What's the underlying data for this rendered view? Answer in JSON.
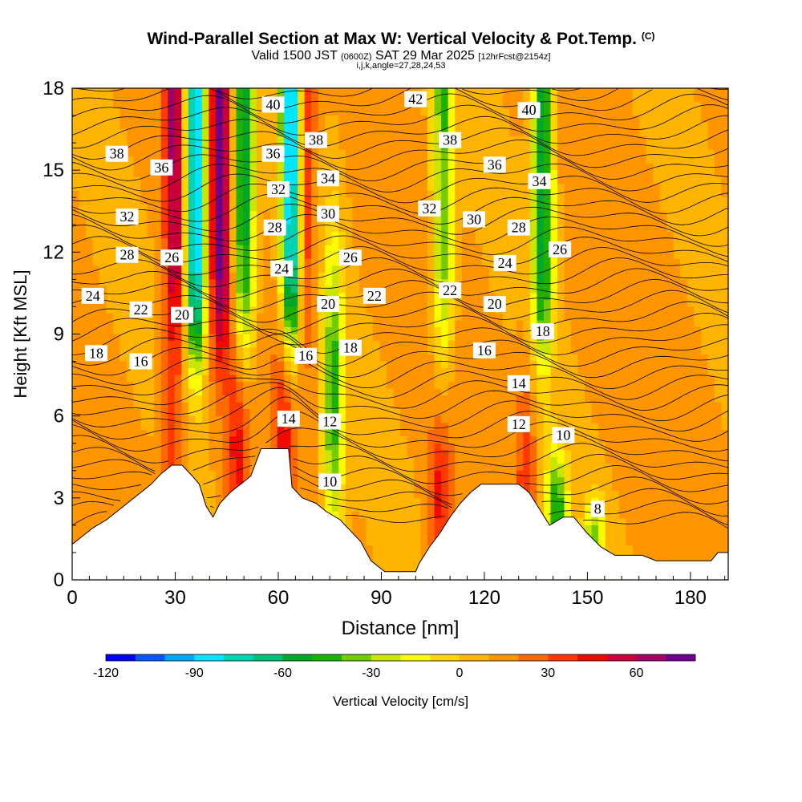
{
  "title": {
    "main": "Wind-Parallel Section at Max W: Vertical Velocity & Pot.Temp.",
    "copyright": "(C)",
    "valid_prefix": "Valid 1500 JST",
    "valid_utc": "(0600Z)",
    "valid_date": "SAT 29 Mar 2025",
    "forecast": "[12hrFcst@2154z]",
    "indices": "i,j,k,angle=27,28,24,53"
  },
  "colors": {
    "colorbar": [
      "#0000ff",
      "#0a55ff",
      "#00a5ff",
      "#00e6ff",
      "#00d2b4",
      "#00c075",
      "#00a82a",
      "#1fb000",
      "#73cc00",
      "#c8e600",
      "#fcfc00",
      "#ffd500",
      "#ffb500",
      "#ff9600",
      "#ff6a00",
      "#ff3a00",
      "#f00a00",
      "#c8003a",
      "#a00064",
      "#6e008c"
    ],
    "terrain": "#ffffff",
    "contour": "#000000"
  },
  "chart_data": {
    "type": "heatmap",
    "xlabel": "Distance [nm]",
    "ylabel": "Height [Kft MSL]",
    "xlim": [
      0,
      191
    ],
    "ylim": [
      0,
      18
    ],
    "xticks": [
      0,
      30,
      60,
      90,
      120,
      150,
      180
    ],
    "yticks": [
      0,
      3,
      6,
      9,
      12,
      15,
      18
    ],
    "colorbar": {
      "label": "Vertical Velocity [cm/s]",
      "range": [
        -120,
        80
      ],
      "step": 10,
      "ticks": [
        -120,
        -90,
        -60,
        -30,
        0,
        30,
        60
      ]
    },
    "terrain_profile": [
      [
        0,
        1.3
      ],
      [
        3,
        1.6
      ],
      [
        6,
        1.9
      ],
      [
        10,
        2.2
      ],
      [
        13,
        2.5
      ],
      [
        16,
        2.8
      ],
      [
        19,
        3.1
      ],
      [
        23,
        3.5
      ],
      [
        26,
        3.9
      ],
      [
        29,
        4.2
      ],
      [
        32,
        4.2
      ],
      [
        35,
        3.8
      ],
      [
        37,
        3.5
      ],
      [
        39,
        2.7
      ],
      [
        41,
        2.3
      ],
      [
        43,
        2.8
      ],
      [
        46,
        3.2
      ],
      [
        49,
        3.5
      ],
      [
        52,
        3.8
      ],
      [
        55,
        4.8
      ],
      [
        59,
        4.8
      ],
      [
        63,
        4.8
      ],
      [
        64,
        3.4
      ],
      [
        67,
        3.0
      ],
      [
        71,
        2.8
      ],
      [
        74,
        2.5
      ],
      [
        78,
        2.2
      ],
      [
        81,
        1.8
      ],
      [
        84,
        1.4
      ],
      [
        87,
        0.7
      ],
      [
        91,
        0.3
      ],
      [
        95,
        0.3
      ],
      [
        98,
        0.3
      ],
      [
        100,
        0.3
      ],
      [
        101,
        0.6
      ],
      [
        104,
        1.2
      ],
      [
        107,
        1.7
      ],
      [
        110,
        2.3
      ],
      [
        113,
        2.8
      ],
      [
        116,
        3.2
      ],
      [
        119,
        3.5
      ],
      [
        123,
        3.5
      ],
      [
        127,
        3.5
      ],
      [
        130,
        3.5
      ],
      [
        133,
        3.2
      ],
      [
        136,
        2.6
      ],
      [
        139,
        2.0
      ],
      [
        143,
        2.3
      ],
      [
        146,
        2.3
      ],
      [
        150,
        1.7
      ],
      [
        154,
        1.2
      ],
      [
        158,
        0.9
      ],
      [
        162,
        0.9
      ],
      [
        166,
        0.9
      ],
      [
        170,
        0.7
      ],
      [
        174,
        0.7
      ],
      [
        178,
        0.7
      ],
      [
        182,
        0.7
      ],
      [
        186,
        0.7
      ],
      [
        188,
        1.0
      ],
      [
        191,
        1.0
      ]
    ],
    "updrafts": [
      {
        "x": 30,
        "top": 18,
        "peak": 65
      },
      {
        "x": 43,
        "top": 18,
        "peak": 75
      },
      {
        "x": 67,
        "top": 18,
        "peak": 60
      },
      {
        "x": 29,
        "top": 7.5,
        "peak": 40
      },
      {
        "x": 48,
        "top": 8.5,
        "peak": 45
      },
      {
        "x": 62,
        "top": 10,
        "peak": 45
      },
      {
        "x": 107,
        "top": 5.5,
        "peak": 45
      },
      {
        "x": 132,
        "top": 7.5,
        "peak": 35
      }
    ],
    "downdrafts": [
      {
        "x": 36,
        "top": 18,
        "peak": -100
      },
      {
        "x": 50,
        "top": 18,
        "peak": -60
      },
      {
        "x": 64,
        "top": 18,
        "peak": -110
      },
      {
        "x": 76,
        "top": 12,
        "peak": -45
      },
      {
        "x": 108,
        "top": 18,
        "peak": -40
      },
      {
        "x": 137,
        "top": 18,
        "peak": -60
      },
      {
        "x": 141,
        "top": 4.5,
        "peak": -50
      },
      {
        "x": 152,
        "top": 3,
        "peak": -30
      }
    ],
    "contour_labels": [
      {
        "text": "40",
        "x": 58.5,
        "y": 17.4
      },
      {
        "text": "42",
        "x": 100,
        "y": 17.6
      },
      {
        "text": "40",
        "x": 133,
        "y": 17.2
      },
      {
        "text": "38",
        "x": 13,
        "y": 15.6
      },
      {
        "text": "36",
        "x": 26,
        "y": 15.1
      },
      {
        "text": "36",
        "x": 58.5,
        "y": 15.6
      },
      {
        "text": "38",
        "x": 71,
        "y": 16.1
      },
      {
        "text": "38",
        "x": 110,
        "y": 16.1
      },
      {
        "text": "36",
        "x": 123,
        "y": 15.2
      },
      {
        "text": "34",
        "x": 74.5,
        "y": 14.7
      },
      {
        "text": "34",
        "x": 136,
        "y": 14.6
      },
      {
        "text": "32",
        "x": 60,
        "y": 14.3
      },
      {
        "text": "32",
        "x": 16,
        "y": 13.3
      },
      {
        "text": "32",
        "x": 104,
        "y": 13.6
      },
      {
        "text": "30",
        "x": 74.5,
        "y": 13.4
      },
      {
        "text": "30",
        "x": 117,
        "y": 13.2
      },
      {
        "text": "28",
        "x": 59,
        "y": 12.9
      },
      {
        "text": "28",
        "x": 130,
        "y": 12.9
      },
      {
        "text": "28",
        "x": 16,
        "y": 11.9
      },
      {
        "text": "26",
        "x": 29,
        "y": 11.8
      },
      {
        "text": "26",
        "x": 81,
        "y": 11.8
      },
      {
        "text": "26",
        "x": 142,
        "y": 12.1
      },
      {
        "text": "24",
        "x": 61,
        "y": 11.4
      },
      {
        "text": "24",
        "x": 126,
        "y": 11.6
      },
      {
        "text": "24",
        "x": 6,
        "y": 10.4
      },
      {
        "text": "22",
        "x": 88,
        "y": 10.4
      },
      {
        "text": "22",
        "x": 110,
        "y": 10.6
      },
      {
        "text": "22",
        "x": 20,
        "y": 9.9
      },
      {
        "text": "20",
        "x": 32,
        "y": 9.7
      },
      {
        "text": "20",
        "x": 74.5,
        "y": 10.1
      },
      {
        "text": "20",
        "x": 123,
        "y": 10.1
      },
      {
        "text": "18",
        "x": 137,
        "y": 9.1
      },
      {
        "text": "18",
        "x": 81,
        "y": 8.5
      },
      {
        "text": "18",
        "x": 7,
        "y": 8.3
      },
      {
        "text": "16",
        "x": 20,
        "y": 8.0
      },
      {
        "text": "16",
        "x": 68,
        "y": 8.2
      },
      {
        "text": "16",
        "x": 120,
        "y": 8.4
      },
      {
        "text": "14",
        "x": 130,
        "y": 7.2
      },
      {
        "text": "14",
        "x": 63,
        "y": 5.9
      },
      {
        "text": "12",
        "x": 75,
        "y": 5.8
      },
      {
        "text": "12",
        "x": 130,
        "y": 5.7
      },
      {
        "text": "10",
        "x": 143,
        "y": 5.3
      },
      {
        "text": "10",
        "x": 75,
        "y": 3.6
      },
      {
        "text": "8",
        "x": 153,
        "y": 2.6
      }
    ]
  }
}
